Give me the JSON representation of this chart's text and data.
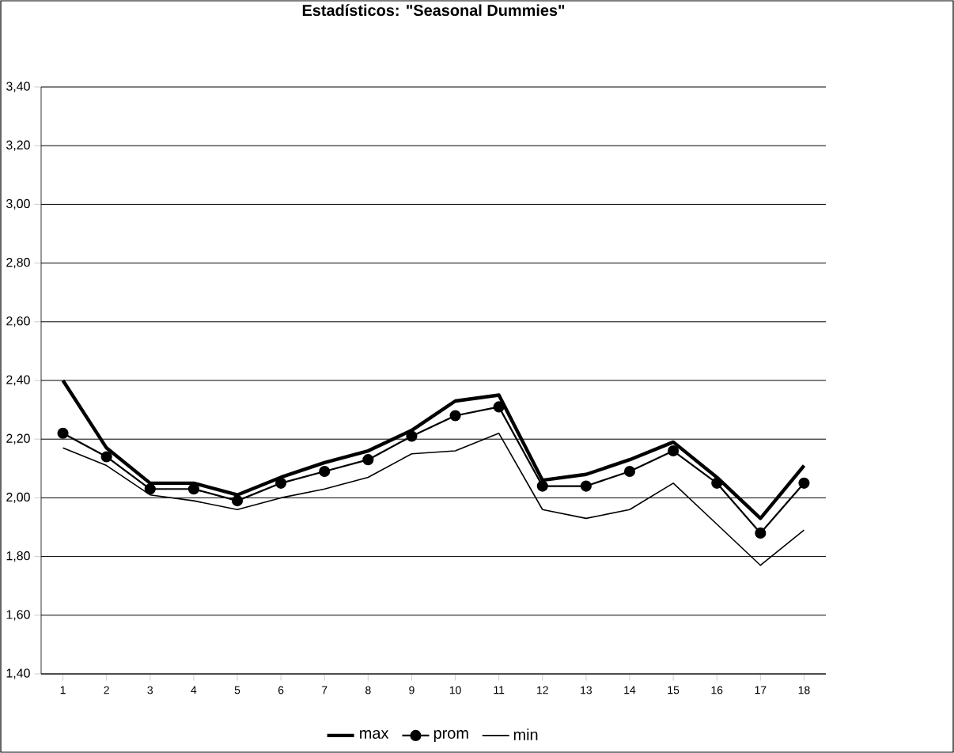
{
  "chart_data": {
    "type": "line",
    "title": "Estadísticos: \"Seasonal Dummies\"",
    "categories": [
      "1",
      "2",
      "3",
      "4",
      "5",
      "6",
      "7",
      "8",
      "9",
      "10",
      "11",
      "12",
      "13",
      "14",
      "15",
      "16",
      "17",
      "18"
    ],
    "series": [
      {
        "name": "max",
        "color": "#000000",
        "marker": "none",
        "values": [
          2.4,
          2.17,
          2.05,
          2.05,
          2.01,
          2.07,
          2.12,
          2.16,
          2.23,
          2.33,
          2.35,
          2.06,
          2.08,
          2.13,
          2.19,
          2.07,
          1.93,
          2.11
        ]
      },
      {
        "name": "prom",
        "color": "#000000",
        "marker": "circle",
        "values": [
          2.22,
          2.14,
          2.03,
          2.03,
          1.99,
          2.05,
          2.09,
          2.13,
          2.21,
          2.28,
          2.31,
          2.04,
          2.04,
          2.09,
          2.16,
          2.05,
          1.88,
          2.05
        ]
      },
      {
        "name": "min",
        "color": "#000000",
        "marker": "none",
        "values": [
          2.17,
          2.11,
          2.01,
          1.99,
          1.96,
          2.0,
          2.03,
          2.07,
          2.15,
          2.16,
          2.22,
          1.96,
          1.93,
          1.96,
          2.05,
          1.91,
          1.77,
          1.89
        ]
      }
    ],
    "ylim": [
      1.4,
      3.4
    ],
    "yticks": [
      {
        "value": 1.4,
        "label": "1,40"
      },
      {
        "value": 1.6,
        "label": "1,60"
      },
      {
        "value": 1.8,
        "label": "1,80"
      },
      {
        "value": 2.0,
        "label": "2,00"
      },
      {
        "value": 2.2,
        "label": "2,20"
      },
      {
        "value": 2.4,
        "label": "2,40"
      },
      {
        "value": 2.6,
        "label": "2,60"
      },
      {
        "value": 2.8,
        "label": "2,80"
      },
      {
        "value": 3.0,
        "label": "3,00"
      },
      {
        "value": 3.2,
        "label": "3,20"
      },
      {
        "value": 3.4,
        "label": "3,40"
      }
    ],
    "grid": "y",
    "legend": "bottom"
  }
}
